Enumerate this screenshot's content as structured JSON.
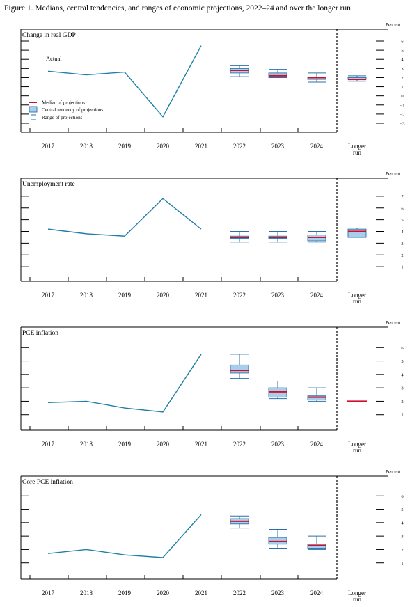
{
  "figure_title": "Figure 1. Medians, central tendencies, and ranges of economic projections, 2022–24 and over the longer run",
  "colors": {
    "actual_line": "#1f7fa6",
    "median": "#d0102b",
    "central_fill": "#a9cdea",
    "central_stroke": "#2a70a8",
    "range": "#2a70a8"
  },
  "x_categories": [
    "2017",
    "2018",
    "2019",
    "2020",
    "2021",
    "2022",
    "2023",
    "2024",
    "Longer run"
  ],
  "chart_data": [
    {
      "type": "line",
      "title": "Change in real GDP",
      "unit_label": "Percent",
      "ylim": [
        -3,
        6
      ],
      "y_ticks": [
        -3,
        -2,
        -1,
        0,
        1,
        2,
        3,
        4,
        5,
        6
      ],
      "y_tick_labels": [
        "−3",
        "−2",
        "−1",
        "0",
        "1",
        "2",
        "3",
        "4",
        "5",
        "6"
      ],
      "actual_label": "Actual",
      "legend": {
        "median": "Median of projections",
        "central": "Central tendency of projections",
        "range": "Range of projections"
      },
      "actual": {
        "x": [
          "2017",
          "2018",
          "2019",
          "2020",
          "2021"
        ],
        "values": [
          2.7,
          2.3,
          2.6,
          -2.3,
          5.5
        ]
      },
      "projections": [
        {
          "x": "2022",
          "median": 2.8,
          "central": [
            2.5,
            3.0
          ],
          "range": [
            2.1,
            3.3
          ]
        },
        {
          "x": "2023",
          "median": 2.2,
          "central": [
            2.0,
            2.5
          ],
          "range": [
            2.0,
            2.9
          ]
        },
        {
          "x": "2024",
          "median": 2.0,
          "central": [
            1.8,
            2.0
          ],
          "range": [
            1.5,
            2.5
          ]
        },
        {
          "x": "Longer run",
          "median": 1.8,
          "central": [
            1.8,
            2.0
          ],
          "range": [
            1.6,
            2.2
          ]
        }
      ]
    },
    {
      "type": "line",
      "title": "Unemployment rate",
      "unit_label": "Percent",
      "ylim": [
        0,
        8
      ],
      "y_ticks": [
        1,
        2,
        3,
        4,
        5,
        6,
        7
      ],
      "y_tick_labels": [
        "1",
        "2",
        "3",
        "4",
        "5",
        "6",
        "7"
      ],
      "actual": {
        "x": [
          "2017",
          "2018",
          "2019",
          "2020",
          "2021"
        ],
        "values": [
          4.2,
          3.8,
          3.6,
          6.8,
          4.2
        ]
      },
      "projections": [
        {
          "x": "2022",
          "median": 3.5,
          "central": [
            3.4,
            3.6
          ],
          "range": [
            3.1,
            4.0
          ]
        },
        {
          "x": "2023",
          "median": 3.5,
          "central": [
            3.4,
            3.6
          ],
          "range": [
            3.1,
            4.0
          ]
        },
        {
          "x": "2024",
          "median": 3.5,
          "central": [
            3.2,
            3.7
          ],
          "range": [
            3.1,
            4.0
          ]
        },
        {
          "x": "Longer run",
          "median": 4.0,
          "central": [
            3.5,
            4.2
          ],
          "range": [
            3.5,
            4.3
          ]
        }
      ]
    },
    {
      "type": "line",
      "title": "PCE inflation",
      "unit_label": "Percent",
      "ylim": [
        0,
        7
      ],
      "y_ticks": [
        1,
        2,
        3,
        4,
        5,
        6
      ],
      "y_tick_labels": [
        "1",
        "2",
        "3",
        "4",
        "5",
        "6"
      ],
      "actual": {
        "x": [
          "2017",
          "2018",
          "2019",
          "2020",
          "2021"
        ],
        "values": [
          1.9,
          2.0,
          1.5,
          1.2,
          5.5
        ]
      },
      "projections": [
        {
          "x": "2022",
          "median": 4.3,
          "central": [
            4.1,
            4.7
          ],
          "range": [
            3.7,
            5.5
          ]
        },
        {
          "x": "2023",
          "median": 2.7,
          "central": [
            2.3,
            3.0
          ],
          "range": [
            2.2,
            3.5
          ]
        },
        {
          "x": "2024",
          "median": 2.3,
          "central": [
            2.1,
            2.4
          ],
          "range": [
            2.0,
            3.0
          ]
        },
        {
          "x": "Longer run",
          "median": 2.0
        }
      ]
    },
    {
      "type": "line",
      "title": "Core PCE inflation",
      "unit_label": "Percent",
      "ylim": [
        0,
        7
      ],
      "y_ticks": [
        1,
        2,
        3,
        4,
        5,
        6
      ],
      "y_tick_labels": [
        "1",
        "2",
        "3",
        "4",
        "5",
        "6"
      ],
      "actual": {
        "x": [
          "2017",
          "2018",
          "2019",
          "2020",
          "2021"
        ],
        "values": [
          1.7,
          2.0,
          1.6,
          1.4,
          4.6
        ]
      },
      "projections": [
        {
          "x": "2022",
          "median": 4.1,
          "central": [
            3.9,
            4.3
          ],
          "range": [
            3.6,
            4.5
          ]
        },
        {
          "x": "2023",
          "median": 2.6,
          "central": [
            2.4,
            2.9
          ],
          "range": [
            2.1,
            3.5
          ]
        },
        {
          "x": "2024",
          "median": 2.3,
          "central": [
            2.1,
            2.4
          ],
          "range": [
            2.0,
            3.0
          ]
        }
      ]
    }
  ]
}
